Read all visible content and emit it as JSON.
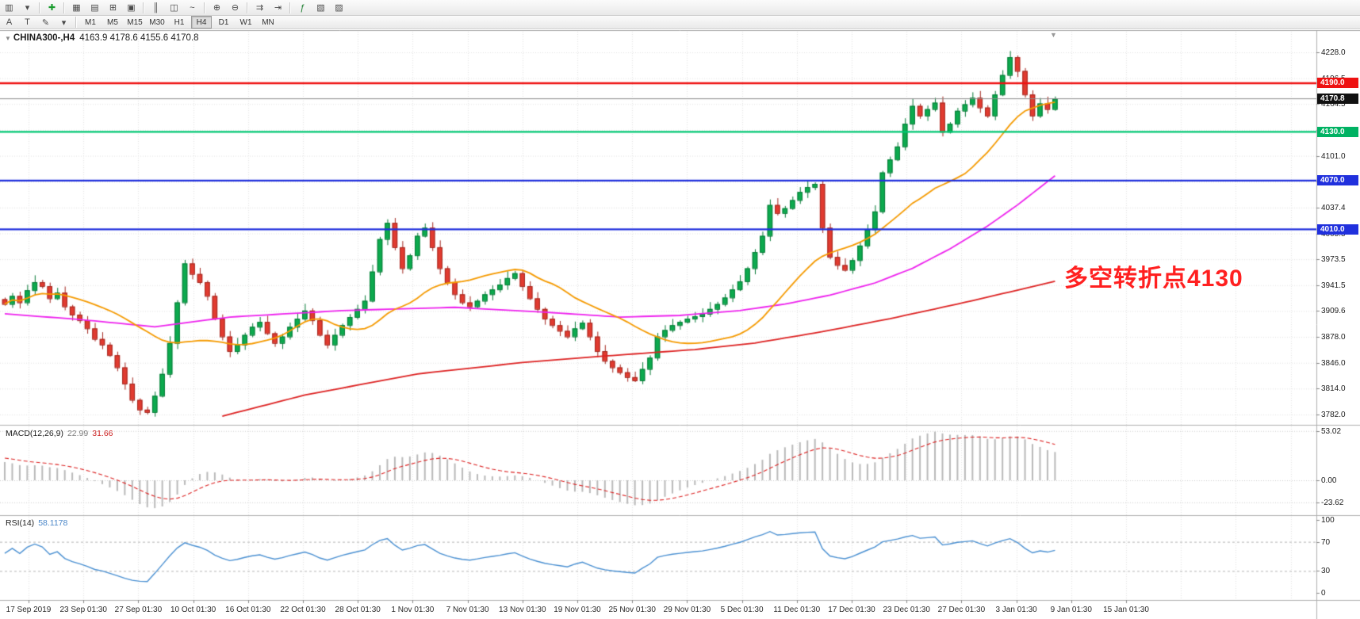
{
  "toolbar": {
    "row1": [
      {
        "name": "new-chart-button",
        "glyph": "▥"
      },
      {
        "name": "chart-type-dropdown",
        "glyph": "▾"
      },
      {
        "type": "sep"
      },
      {
        "name": "new-order-button",
        "glyph": "✚",
        "color": "#1a9c2e"
      },
      {
        "type": "sep"
      },
      {
        "name": "market-watch-button",
        "glyph": "▦"
      },
      {
        "name": "data-window-button",
        "glyph": "▤"
      },
      {
        "name": "navigator-button",
        "glyph": "⊞"
      },
      {
        "name": "terminal-button",
        "glyph": "▣"
      },
      {
        "type": "sep"
      },
      {
        "name": "bar-chart-button",
        "glyph": "║"
      },
      {
        "name": "candlestick-chart-button",
        "glyph": "◫"
      },
      {
        "name": "line-chart-button",
        "glyph": "~"
      },
      {
        "type": "sep"
      },
      {
        "name": "zoom-in-button",
        "glyph": "⊕"
      },
      {
        "name": "zoom-out-button",
        "glyph": "⊖"
      },
      {
        "type": "sep"
      },
      {
        "name": "auto-scroll-button",
        "glyph": "⇉"
      },
      {
        "name": "chart-shift-button",
        "glyph": "⇥"
      },
      {
        "type": "sep"
      },
      {
        "name": "indicators-button",
        "glyph": "ƒ",
        "color": "#1a7c2e"
      },
      {
        "name": "periods-dropdown",
        "glyph": "▧"
      },
      {
        "name": "templates-button",
        "glyph": "▨"
      }
    ],
    "row2_tools": [
      {
        "name": "label-tool-button",
        "glyph": "A"
      },
      {
        "name": "text-tool-button",
        "glyph": "T"
      },
      {
        "name": "shapes-tool-button",
        "glyph": "✎"
      },
      {
        "name": "shapes-dropdown",
        "glyph": "▾"
      }
    ],
    "timeframes": [
      {
        "label": "M1"
      },
      {
        "label": "M5"
      },
      {
        "label": "M15"
      },
      {
        "label": "M30"
      },
      {
        "label": "H1"
      },
      {
        "label": "H4",
        "active": true
      },
      {
        "label": "D1"
      },
      {
        "label": "W1"
      },
      {
        "label": "MN"
      }
    ]
  },
  "chart": {
    "title": "CHINA300-,H4",
    "ohlc_text": "4163.9 4178.6 4155.6 4170.8",
    "expand_glyph": "▼",
    "scroll_marker_glyph": "▼",
    "annotation": {
      "text": "多空转折点4130",
      "color": "#ff2020"
    },
    "levels": [
      {
        "label": "4190.0",
        "price": 4190,
        "line_color": "#ee1111",
        "line_width": 2.4,
        "badge_bg": "#ee1111"
      },
      {
        "label": "4170.8",
        "price": 4170.8,
        "line_color": "#8c8c8c",
        "line_width": 1,
        "badge_bg": "#111111"
      },
      {
        "label": "4130.0",
        "price": 4130,
        "line_color": "#00c873",
        "line_width": 2.2,
        "badge_bg": "#00b263"
      },
      {
        "label": "4070.0",
        "price": 4070,
        "line_color": "#2030dd",
        "line_width": 2.2,
        "badge_bg": "#2030dd"
      },
      {
        "label": "4010.0",
        "price": 4010,
        "line_color": "#2030dd",
        "line_width": 2.2,
        "badge_bg": "#2030dd"
      }
    ],
    "price_axis": [
      "4228.0",
      "4196.5",
      "4164.5",
      "4132.5",
      "4101.0",
      "4069.0",
      "4037.4",
      "4005.5",
      "3973.5",
      "3941.5",
      "3909.6",
      "3878.0",
      "3846.0",
      "3814.0",
      "3782.0"
    ],
    "time_axis": [
      "17 Sep 2019",
      "23 Sep 01:30",
      "27 Sep 01:30",
      "10 Oct 01:30",
      "16 Oct 01:30",
      "22 Oct 01:30",
      "28 Oct 01:30",
      "1 Nov 01:30",
      "7 Nov 01:30",
      "13 Nov 01:30",
      "19 Nov 01:30",
      "25 Nov 01:30",
      "29 Nov 01:30",
      "5 Dec 01:30",
      "11 Dec 01:30",
      "17 Dec 01:30",
      "23 Dec 01:30",
      "27 Dec 01:30",
      "3 Jan 01:30",
      "9 Jan 01:30",
      "15 Jan 01:30"
    ]
  },
  "macd": {
    "label": "MACD(12,26,9)",
    "value1": "22.99",
    "value2": "31.66",
    "axis": [
      "53.02",
      "0.00",
      "-23.62"
    ],
    "axis_values": [
      53.02,
      0,
      -23.62
    ]
  },
  "rsi": {
    "label": "RSI(14)",
    "value": "58.1178",
    "axis": [
      "100",
      "70",
      "30",
      "0"
    ],
    "axis_values": [
      100,
      70,
      30,
      0
    ]
  },
  "colors": {
    "up": "#0caa4e",
    "up_border": "#067a36",
    "down": "#e13b30",
    "down_border": "#a3271f",
    "ma_fast": "#f59a00",
    "ma_mid": "#ee22ee",
    "ma_slow": "#dd2222",
    "macd_hist": "#b9b9b9",
    "macd_signal": "#dd2222",
    "rsi_line": "#4a90d2",
    "grid": "#e3e3e3",
    "separator": "#b0b0b0"
  },
  "chart_data": {
    "type": "candlestick",
    "symbol": "CHINA300-",
    "timeframe": "H4",
    "ohlc_display": {
      "open": 4163.9,
      "high": 4178.6,
      "low": 4155.6,
      "close": 4170.8
    },
    "price_range": [
      3782,
      4228
    ],
    "closes": [
      3918,
      3928,
      3920,
      3935,
      3945,
      3940,
      3925,
      3932,
      3915,
      3905,
      3898,
      3888,
      3875,
      3868,
      3855,
      3840,
      3820,
      3800,
      3788,
      3785,
      3805,
      3832,
      3870,
      3920,
      3968,
      3955,
      3945,
      3928,
      3900,
      3878,
      3860,
      3868,
      3880,
      3890,
      3896,
      3882,
      3870,
      3878,
      3890,
      3900,
      3910,
      3898,
      3880,
      3868,
      3880,
      3892,
      3902,
      3912,
      3922,
      3958,
      3998,
      4018,
      3988,
      3962,
      3978,
      4002,
      4012,
      3988,
      3962,
      3945,
      3930,
      3920,
      3915,
      3922,
      3930,
      3936,
      3942,
      3950,
      3956,
      3940,
      3925,
      3912,
      3900,
      3892,
      3885,
      3878,
      3888,
      3895,
      3878,
      3860,
      3848,
      3840,
      3834,
      3828,
      3824,
      3838,
      3852,
      3878,
      3886,
      3892,
      3896,
      3900,
      3903,
      3906,
      3912,
      3918,
      3926,
      3936,
      3946,
      3962,
      3982,
      4002,
      4040,
      4030,
      4036,
      4046,
      4056,
      4062,
      4066,
      4012,
      3976,
      3966,
      3960,
      3972,
      3990,
      4010,
      4032,
      4080,
      4096,
      4112,
      4140,
      4162,
      4150,
      4158,
      4166,
      4130,
      4140,
      4156,
      4164,
      4172,
      4160,
      4150,
      4176,
      4200,
      4222,
      4205,
      4176,
      4150,
      4165,
      4158,
      4170.8
    ],
    "ma": {
      "fast_period": 20,
      "magenta_anchors": [
        [
          0,
          3906
        ],
        [
          10,
          3899
        ],
        [
          20,
          3890
        ],
        [
          30,
          3902
        ],
        [
          45,
          3910
        ],
        [
          60,
          3914
        ],
        [
          72,
          3908
        ],
        [
          82,
          3902
        ],
        [
          90,
          3904
        ],
        [
          98,
          3910
        ],
        [
          104,
          3918
        ],
        [
          110,
          3929
        ],
        [
          116,
          3944
        ],
        [
          121,
          3962
        ],
        [
          126,
          3986
        ],
        [
          131,
          4014
        ],
        [
          135,
          4040
        ],
        [
          140,
          4076
        ]
      ],
      "red_anchors": [
        [
          29,
          3780
        ],
        [
          40,
          3806
        ],
        [
          55,
          3832
        ],
        [
          69,
          3846
        ],
        [
          80,
          3854
        ],
        [
          92,
          3862
        ],
        [
          100,
          3870
        ],
        [
          109,
          3884
        ],
        [
          118,
          3900
        ],
        [
          127,
          3918
        ],
        [
          134,
          3933
        ],
        [
          140,
          3946
        ]
      ]
    },
    "levels": {
      "resistance": 4190,
      "pivot": 4130,
      "support1": 4070,
      "support2": 4010,
      "current_bid": 4170.8
    },
    "macd": {
      "fast": 12,
      "slow": 26,
      "signal": 9,
      "last_macd": 22.99,
      "last_signal": 31.66,
      "axis_range": [
        -23.62,
        53.02
      ]
    },
    "rsi": {
      "period": 14,
      "last": 58.1178,
      "levels": [
        30,
        70
      ],
      "axis_range": [
        0,
        100
      ]
    }
  }
}
